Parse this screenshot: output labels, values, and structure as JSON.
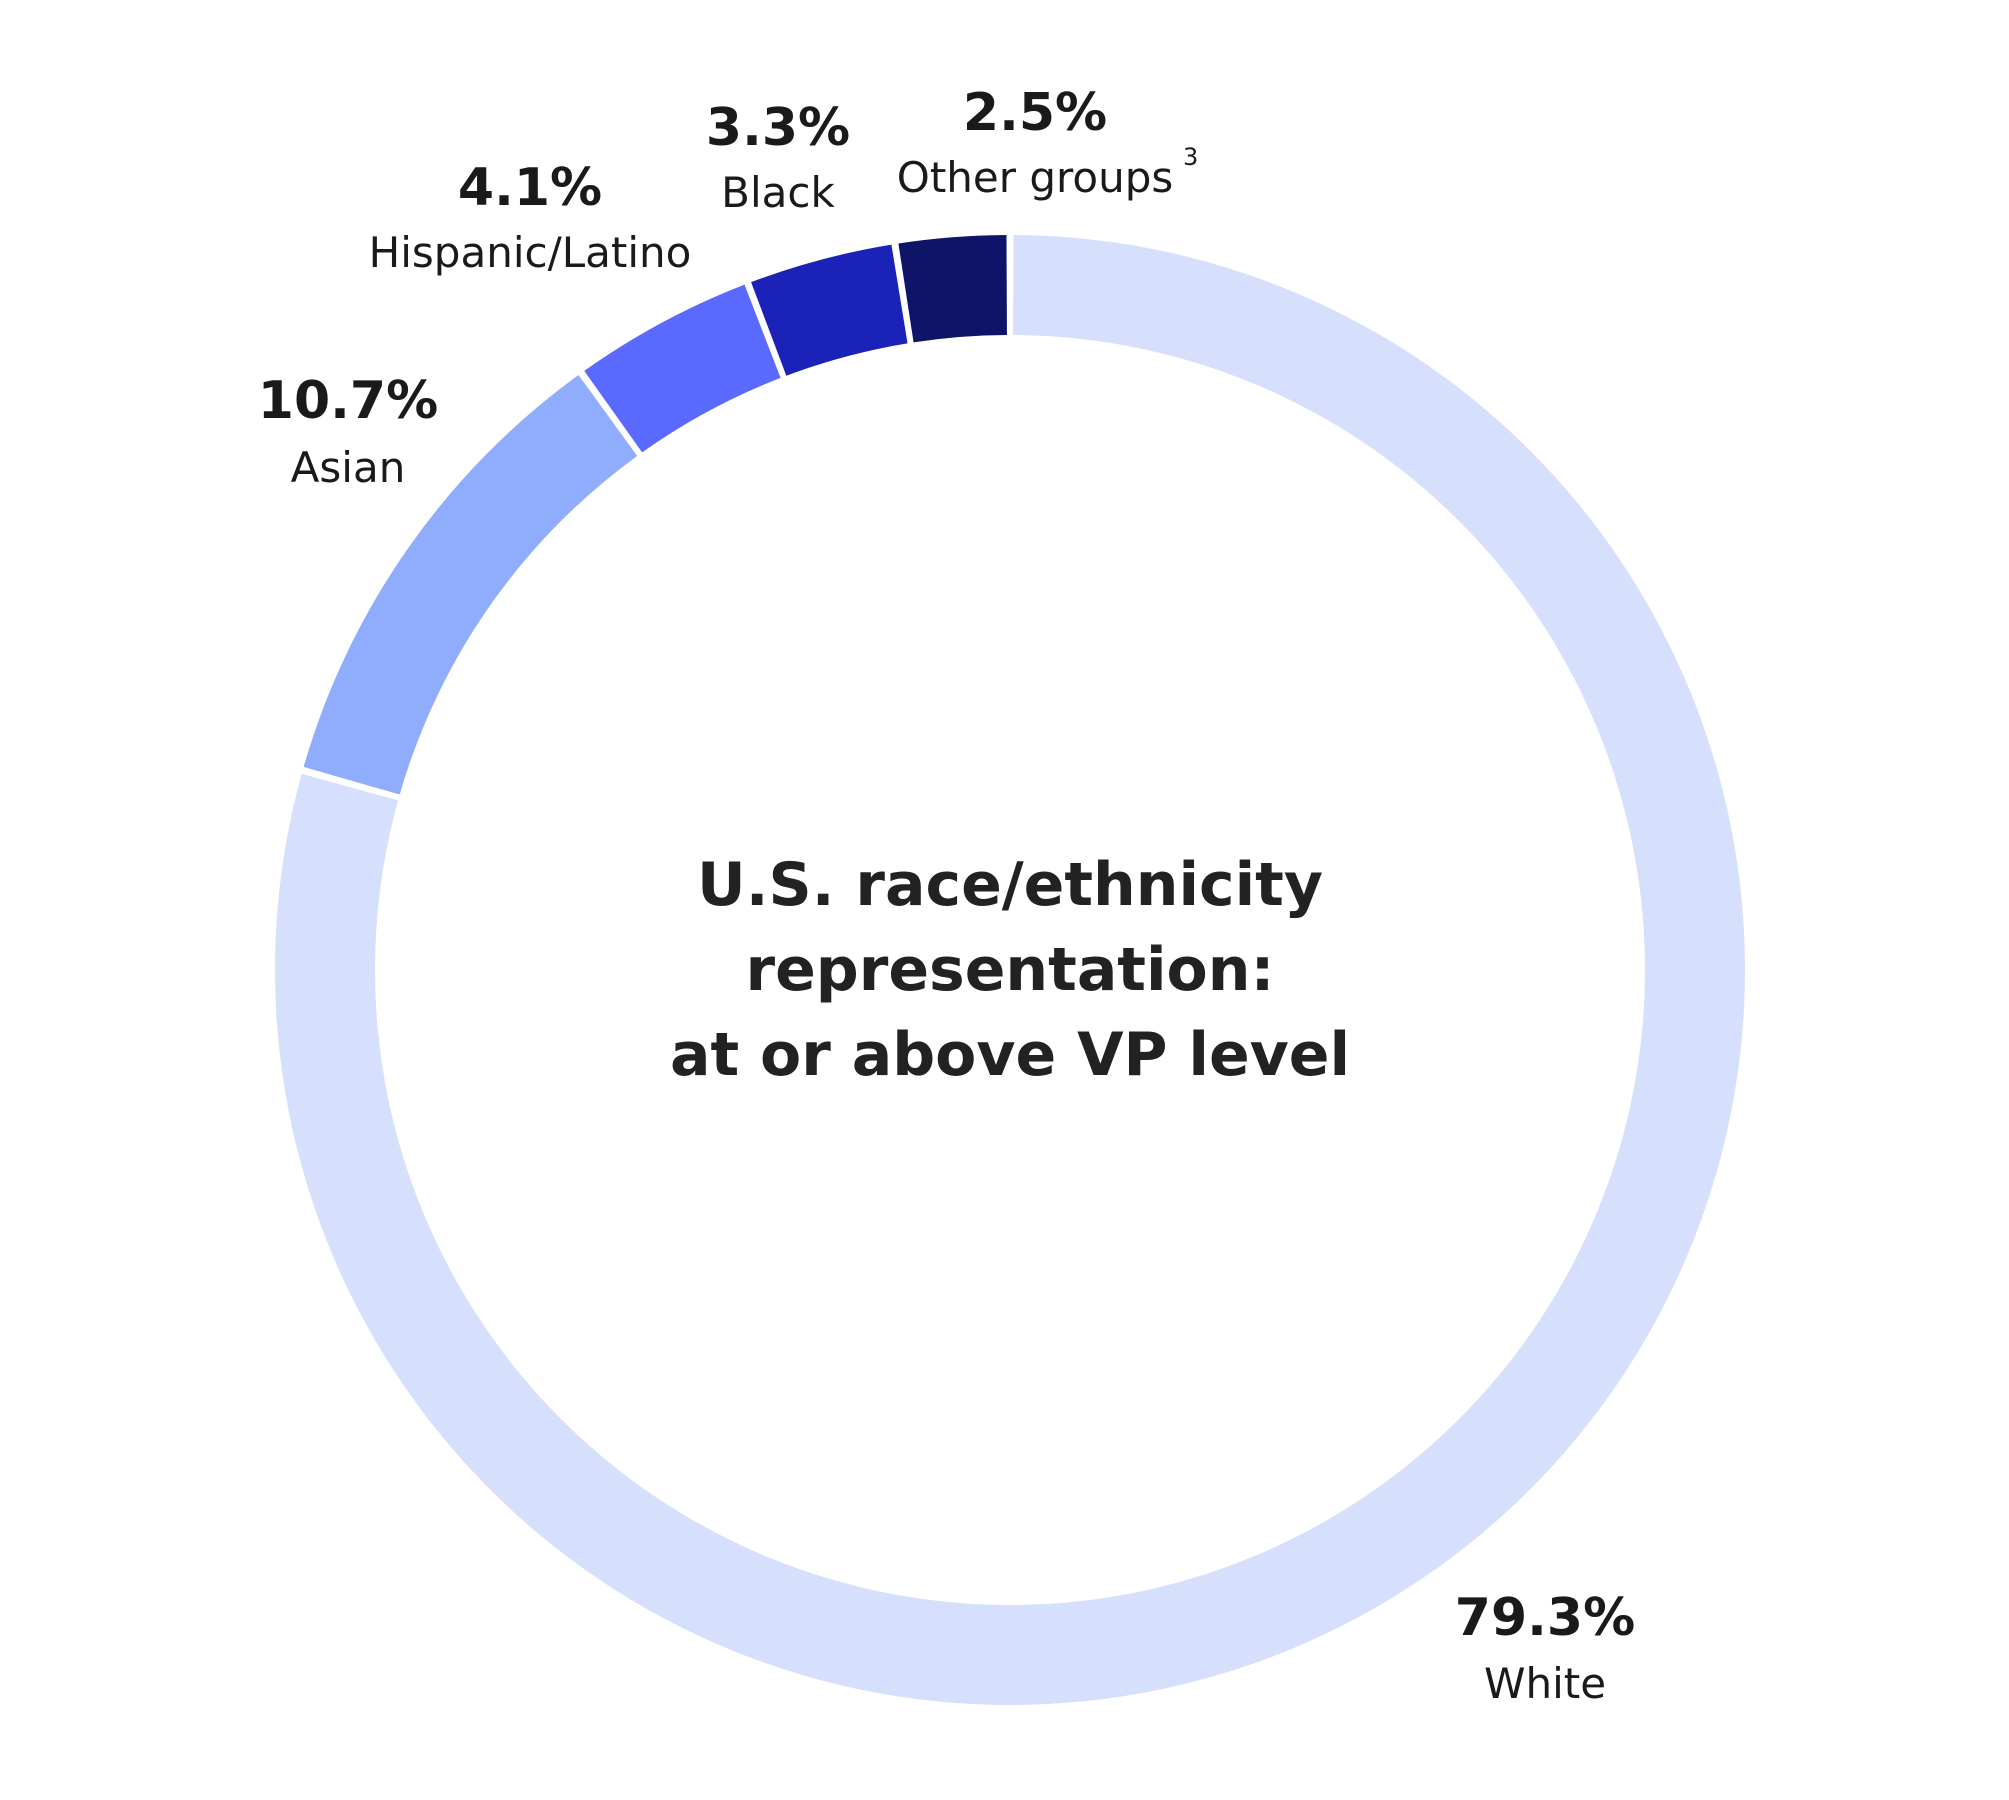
{
  "chart_data": {
    "type": "pie",
    "donut": true,
    "center_title": [
      "U.S. race/ethnicity",
      "representation:",
      "at or above VP level"
    ],
    "slices": [
      {
        "label": "White",
        "value": 79.3,
        "value_text": "79.3%",
        "color": "#d6e0fc"
      },
      {
        "label": "Asian",
        "value": 10.7,
        "value_text": "10.7%",
        "color": "#8facfd"
      },
      {
        "label": "Hispanic/Latino",
        "value": 4.1,
        "value_text": "4.1%",
        "color": "#5b6afe"
      },
      {
        "label": "Black",
        "value": 3.3,
        "value_text": "3.3%",
        "color": "#1b22b8"
      },
      {
        "label": "Other groups",
        "label_superscript": "3",
        "value": 2.5,
        "value_text": "2.5%",
        "color": "#0e1468"
      }
    ]
  }
}
